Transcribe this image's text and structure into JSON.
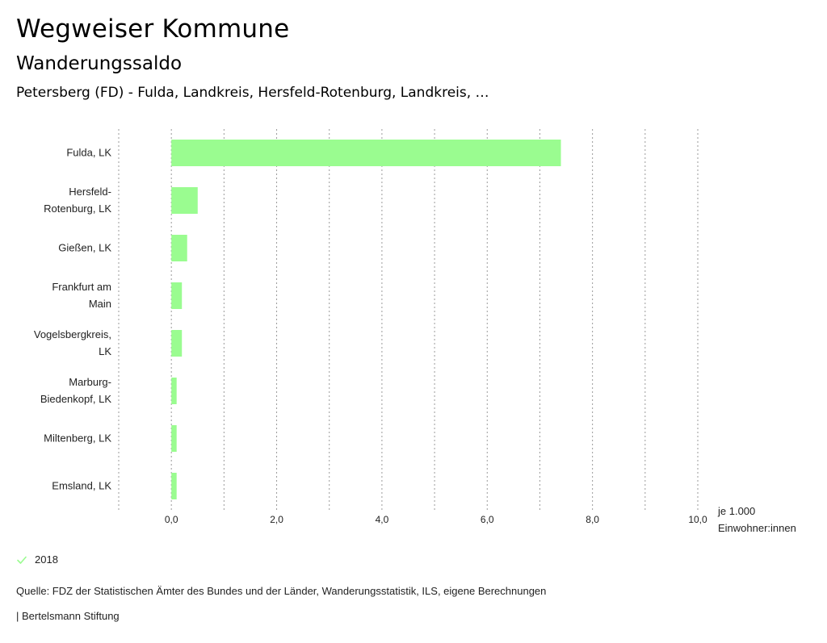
{
  "header": {
    "title": "Wegweiser Kommune",
    "subtitle": "Wanderungssaldo",
    "subject": "Petersberg (FD) - Fulda, Landkreis, Hersfeld-Rotenburg, Landkreis, …"
  },
  "chart_data": {
    "type": "bar",
    "orientation": "horizontal",
    "categories": [
      [
        "Fulda, LK"
      ],
      [
        "Hersfeld-",
        "Rotenburg, LK"
      ],
      [
        "Gießen, LK"
      ],
      [
        "Frankfurt am",
        "Main"
      ],
      [
        "Vogelsbergkreis,",
        "LK"
      ],
      [
        "Marburg-",
        "Biedenkopf, LK"
      ],
      [
        "Miltenberg, LK"
      ],
      [
        "Emsland, LK"
      ]
    ],
    "series": [
      {
        "name": "2018",
        "values": [
          7.4,
          0.5,
          0.3,
          0.2,
          0.2,
          0.1,
          0.1,
          0.1
        ]
      }
    ],
    "xlim": [
      -1,
      10
    ],
    "ticks": [
      0,
      2,
      4,
      6,
      8,
      10
    ],
    "tick_labels": [
      "0,0",
      "2,0",
      "4,0",
      "6,0",
      "8,0",
      "10,0"
    ],
    "gridlines": [
      -1,
      0,
      1,
      2,
      3,
      4,
      5,
      6,
      7,
      8,
      9,
      10
    ],
    "unit_label": [
      "je 1.000",
      "Einwohner:innen"
    ],
    "bar_color": "#9afc90",
    "grid": true
  },
  "legend": {
    "label": "2018",
    "color": "#9afc90"
  },
  "footer": {
    "source": "Quelle: FDZ der Statistischen Ämter des Bundes und der Länder, Wanderungsstatistik, ILS, eigene Berechnungen",
    "publisher": "| Bertelsmann Stiftung"
  }
}
